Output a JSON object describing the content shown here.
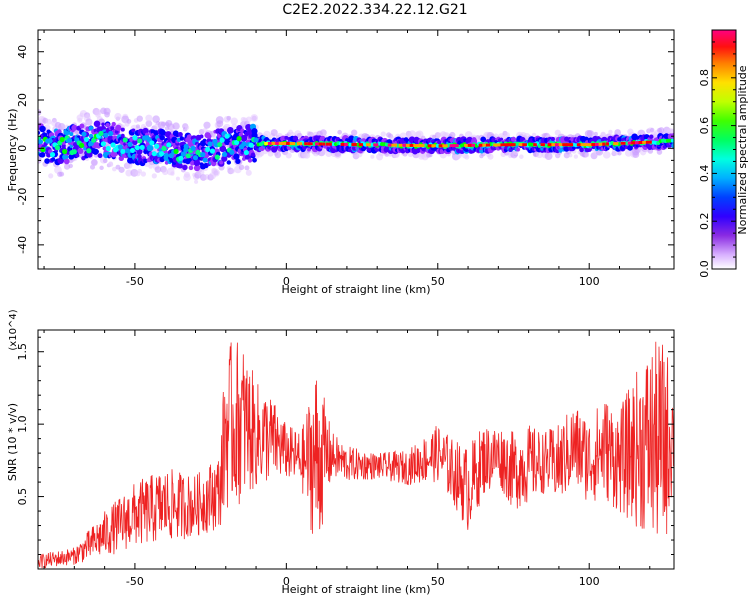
{
  "title": "C2E2.2022.334.22.12.G21",
  "chart_data": [
    {
      "type": "heatmap",
      "title": "C2E2.2022.334.22.12.G21",
      "xlabel": "Height of straight line (km)",
      "ylabel": "Frequency (Hz)",
      "xlim": [
        -82,
        128
      ],
      "ylim": [
        -50,
        49
      ],
      "x_ticks": [
        -50,
        0,
        50,
        100
      ],
      "y_ticks": [
        -40,
        -20,
        0,
        20,
        40
      ],
      "colorbar": {
        "label": "Normalized spectral amplitude",
        "range": [
          0.0,
          1.0
        ],
        "ticks": [
          0.0,
          0.2,
          0.4,
          0.6,
          0.8
        ],
        "colormap": [
          "#ffffff",
          "#e8d0ff",
          "#9b30ff",
          "#4b00ff",
          "#0000ff",
          "#00a0ff",
          "#00ffff",
          "#00ff80",
          "#00ff00",
          "#a0ff00",
          "#ffff00",
          "#ffa000",
          "#ff0000",
          "#ff0080"
        ]
      },
      "dominant_band": {
        "description": "strong spectral line near 2 Hz for heights above -10 km",
        "points": [
          {
            "x": -80,
            "y": 0
          },
          {
            "x": -70,
            "y": 2
          },
          {
            "x": -60,
            "y": 4
          },
          {
            "x": -50,
            "y": 1
          },
          {
            "x": -40,
            "y": 0
          },
          {
            "x": -30,
            "y": -2
          },
          {
            "x": -20,
            "y": 1
          },
          {
            "x": -10,
            "y": 2
          },
          {
            "x": 0,
            "y": 2
          },
          {
            "x": 25,
            "y": 1.5
          },
          {
            "x": 50,
            "y": 1
          },
          {
            "x": 75,
            "y": 1.5
          },
          {
            "x": 100,
            "y": 1.5
          },
          {
            "x": 128,
            "y": 3
          }
        ]
      }
    },
    {
      "type": "line",
      "xlabel": "Height of straight line (km)",
      "ylabel": "SNR (10 * v/v)",
      "y_multiplier": "(x10^4)",
      "xlim": [
        -82,
        128
      ],
      "ylim": [
        0,
        1.65
      ],
      "x_ticks": [
        -50,
        0,
        50,
        100
      ],
      "y_ticks": [
        0.5,
        1.0,
        1.5
      ],
      "color": "#ee2222",
      "envelope": {
        "x": [
          -82,
          -70,
          -60,
          -50,
          -40,
          -30,
          -22,
          -20,
          -15,
          -10,
          -5,
          0,
          5,
          10,
          15,
          20,
          30,
          40,
          50,
          55,
          60,
          65,
          70,
          75,
          80,
          85,
          90,
          95,
          100,
          105,
          110,
          115,
          120,
          125,
          128
        ],
        "low": [
          0.0,
          0.03,
          0.08,
          0.15,
          0.18,
          0.22,
          0.28,
          0.4,
          0.45,
          0.55,
          0.6,
          0.62,
          0.55,
          0.1,
          0.62,
          0.6,
          0.62,
          0.58,
          0.6,
          0.45,
          0.25,
          0.5,
          0.58,
          0.4,
          0.45,
          0.52,
          0.45,
          0.55,
          0.45,
          0.48,
          0.38,
          0.3,
          0.2,
          0.12,
          0.6
        ],
        "high": [
          0.1,
          0.15,
          0.4,
          0.6,
          0.7,
          0.65,
          0.8,
          1.55,
          1.6,
          1.3,
          1.2,
          1.0,
          0.95,
          1.42,
          0.95,
          0.85,
          0.8,
          0.82,
          1.0,
          0.9,
          0.85,
          1.0,
          1.0,
          0.95,
          1.0,
          0.95,
          1.0,
          1.15,
          1.05,
          1.2,
          1.1,
          1.35,
          1.55,
          1.6,
          1.3
        ]
      }
    }
  ]
}
